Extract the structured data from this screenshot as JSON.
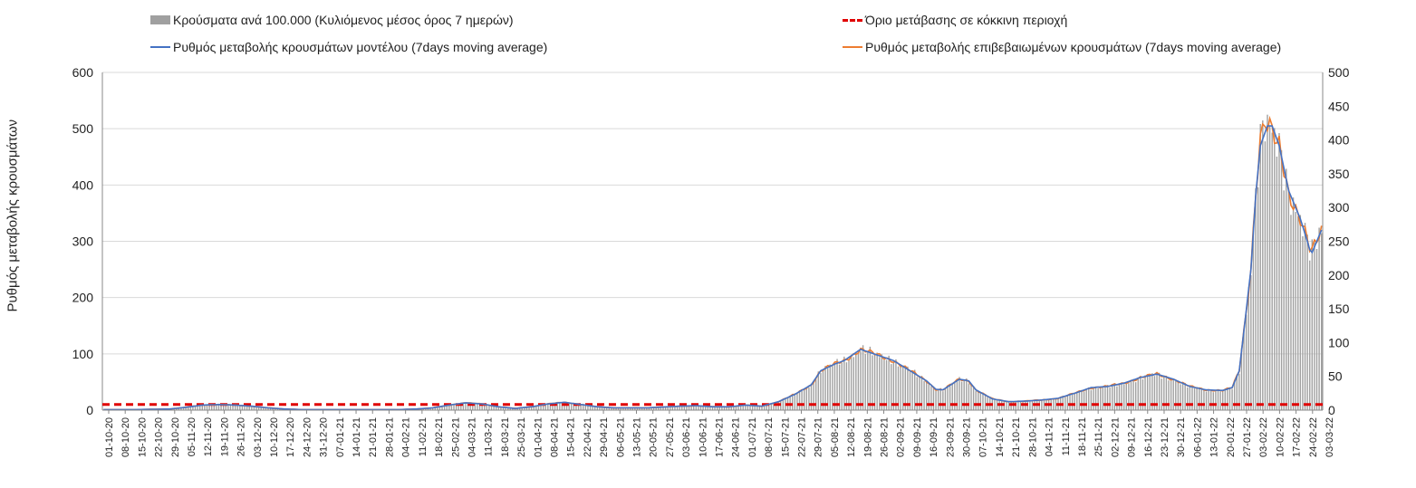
{
  "chart_data": {
    "type": "bar+line",
    "title": "",
    "ylabel": "Ρυθμός μεταβολής κρουσμάτων",
    "ylim_left": [
      0,
      600
    ],
    "ylim_right": [
      0,
      500
    ],
    "yticks_left": [
      "0",
      "100",
      "200",
      "300",
      "400",
      "500",
      "600"
    ],
    "yticks_right": [
      "0",
      "50",
      "100",
      "150",
      "200",
      "250",
      "300",
      "350",
      "400",
      "450",
      "500"
    ],
    "grid": "horizontal",
    "legend": "top",
    "legend_entries": {
      "bars": "Κρούσματα ανά 100.000 (Κυλιόμενος μέσος όρος 7 ημερών)",
      "threshold": "Όριο μετάβασης σε κόκκινη περιοχή",
      "model": "Ρυθμός μεταβολής κρουσμάτων μοντέλου (7days moving average)",
      "confirmed": "Ρυθμός μεταβολής επιβεβαιωμένων κρουσμάτων (7days moving average)"
    },
    "colors": {
      "bars": "#a0a0a0",
      "threshold": "#e00000",
      "model": "#4472c4",
      "confirmed": "#ed7d31",
      "grid": "#d9d9d9"
    },
    "x_labels": [
      "01-10-20",
      "08-10-20",
      "15-10-20",
      "22-10-20",
      "29-10-20",
      "05-11-20",
      "12-11-20",
      "19-11-20",
      "26-11-20",
      "03-12-20",
      "10-12-20",
      "17-12-20",
      "24-12-20",
      "31-12-20",
      "07-01-21",
      "14-01-21",
      "21-01-21",
      "28-01-21",
      "04-02-21",
      "11-02-21",
      "18-02-21",
      "25-02-21",
      "04-03-21",
      "11-03-21",
      "18-03-21",
      "25-03-21",
      "01-04-21",
      "08-04-21",
      "15-04-21",
      "22-04-21",
      "29-04-21",
      "06-05-21",
      "13-05-21",
      "20-05-21",
      "27-05-21",
      "03-06-21",
      "10-06-21",
      "17-06-21",
      "24-06-21",
      "01-07-21",
      "08-07-21",
      "15-07-21",
      "22-07-21",
      "29-07-21",
      "05-08-21",
      "12-08-21",
      "19-08-21",
      "26-08-21",
      "02-09-21",
      "09-09-21",
      "16-09-21",
      "23-09-21",
      "30-09-21",
      "07-10-21",
      "14-10-21",
      "21-10-21",
      "28-10-21",
      "04-11-21",
      "11-11-21",
      "18-11-21",
      "25-11-21",
      "02-12-21",
      "09-12-21",
      "16-12-21",
      "23-12-21",
      "30-12-21",
      "06-01-22",
      "13-01-22",
      "20-01-22",
      "27-01-22",
      "03-02-22",
      "10-02-22",
      "17-02-22",
      "24-02-22",
      "03-03-22"
    ],
    "days_total": 519,
    "threshold_value": 10,
    "series_anchors_day_value_left_axis": [
      [
        0,
        1
      ],
      [
        14,
        1
      ],
      [
        28,
        2
      ],
      [
        35,
        5
      ],
      [
        42,
        9
      ],
      [
        49,
        10
      ],
      [
        56,
        9
      ],
      [
        63,
        7
      ],
      [
        70,
        4
      ],
      [
        77,
        2
      ],
      [
        84,
        1
      ],
      [
        98,
        1
      ],
      [
        112,
        1
      ],
      [
        126,
        1
      ],
      [
        133,
        2
      ],
      [
        140,
        4
      ],
      [
        147,
        9
      ],
      [
        154,
        13
      ],
      [
        161,
        11
      ],
      [
        168,
        6
      ],
      [
        175,
        3
      ],
      [
        182,
        6
      ],
      [
        189,
        11
      ],
      [
        196,
        14
      ],
      [
        203,
        10
      ],
      [
        210,
        6
      ],
      [
        217,
        4
      ],
      [
        231,
        4
      ],
      [
        245,
        7
      ],
      [
        252,
        8
      ],
      [
        259,
        6
      ],
      [
        266,
        6
      ],
      [
        273,
        9
      ],
      [
        280,
        7
      ],
      [
        287,
        15
      ],
      [
        294,
        28
      ],
      [
        301,
        45
      ],
      [
        305,
        70
      ],
      [
        311,
        82
      ],
      [
        315,
        88
      ],
      [
        322,
        108
      ],
      [
        329,
        98
      ],
      [
        336,
        88
      ],
      [
        343,
        70
      ],
      [
        350,
        52
      ],
      [
        354,
        37
      ],
      [
        357,
        36
      ],
      [
        364,
        55
      ],
      [
        368,
        52
      ],
      [
        371,
        36
      ],
      [
        378,
        20
      ],
      [
        385,
        15
      ],
      [
        392,
        16
      ],
      [
        399,
        18
      ],
      [
        406,
        21
      ],
      [
        413,
        30
      ],
      [
        420,
        40
      ],
      [
        427,
        42
      ],
      [
        434,
        48
      ],
      [
        441,
        58
      ],
      [
        448,
        64
      ],
      [
        455,
        55
      ],
      [
        462,
        42
      ],
      [
        469,
        36
      ],
      [
        476,
        35
      ],
      [
        480,
        40
      ],
      [
        483,
        70
      ],
      [
        488,
        250
      ],
      [
        490,
        380
      ],
      [
        492,
        470
      ],
      [
        495,
        505
      ],
      [
        497,
        505
      ],
      [
        500,
        470
      ],
      [
        504,
        390
      ],
      [
        509,
        340
      ],
      [
        512,
        300
      ],
      [
        513,
        285
      ],
      [
        514,
        280
      ],
      [
        516,
        300
      ],
      [
        519,
        330
      ]
    ],
    "bar_scale_note": "right-axis"
  }
}
